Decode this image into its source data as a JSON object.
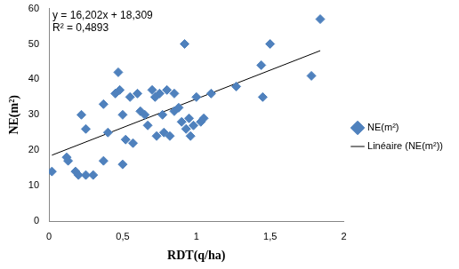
{
  "chart_data": {
    "type": "scatter",
    "x_label": "RDT(q/ha)",
    "y_label": "NE(m²)",
    "annotations": [
      "y = 16,202x + 18,309",
      "R² = 0,4893"
    ],
    "xlim": [
      0,
      2
    ],
    "xticks": [
      0,
      {
        "value": 0.5,
        "label": "0,5"
      },
      1,
      {
        "value": 1.5,
        "label": "1,5"
      },
      2
    ],
    "ylim": [
      0,
      60
    ],
    "yticks": [
      0,
      10,
      20,
      30,
      40,
      50,
      60
    ],
    "grid": false,
    "legend": "right",
    "series": [
      {
        "name": "NE(m²)",
        "type": "scatter",
        "color": "#4f81bd",
        "marker": "diamond",
        "x": [
          0.02,
          0.12,
          0.13,
          0.18,
          0.2,
          0.22,
          0.25,
          0.25,
          0.3,
          0.37,
          0.37,
          0.4,
          0.45,
          0.47,
          0.48,
          0.5,
          0.5,
          0.52,
          0.55,
          0.57,
          0.6,
          0.62,
          0.65,
          0.67,
          0.7,
          0.72,
          0.73,
          0.75,
          0.77,
          0.78,
          0.8,
          0.82,
          0.85,
          0.85,
          0.88,
          0.9,
          0.92,
          0.93,
          0.95,
          0.96,
          0.98,
          1.0,
          1.03,
          1.05,
          1.1,
          1.27,
          1.44,
          1.45,
          1.5,
          1.78,
          1.84
        ],
        "values": [
          14,
          18,
          17,
          14,
          13,
          30,
          26,
          13,
          13,
          17,
          33,
          25,
          36,
          42,
          37,
          30,
          16,
          23,
          35,
          22,
          36,
          31,
          30,
          27,
          37,
          35,
          24,
          36,
          30,
          25,
          37,
          24,
          36,
          31,
          32,
          28,
          50,
          26,
          29,
          24,
          27,
          35,
          28,
          29,
          36,
          38,
          44,
          35,
          50,
          41,
          57
        ]
      },
      {
        "name": "Linéaire (NE(m²))",
        "type": "line",
        "color": "#000000",
        "line_style": "solid",
        "x": [
          0.02,
          1.84
        ],
        "values": [
          18.6,
          48.1
        ]
      }
    ]
  }
}
